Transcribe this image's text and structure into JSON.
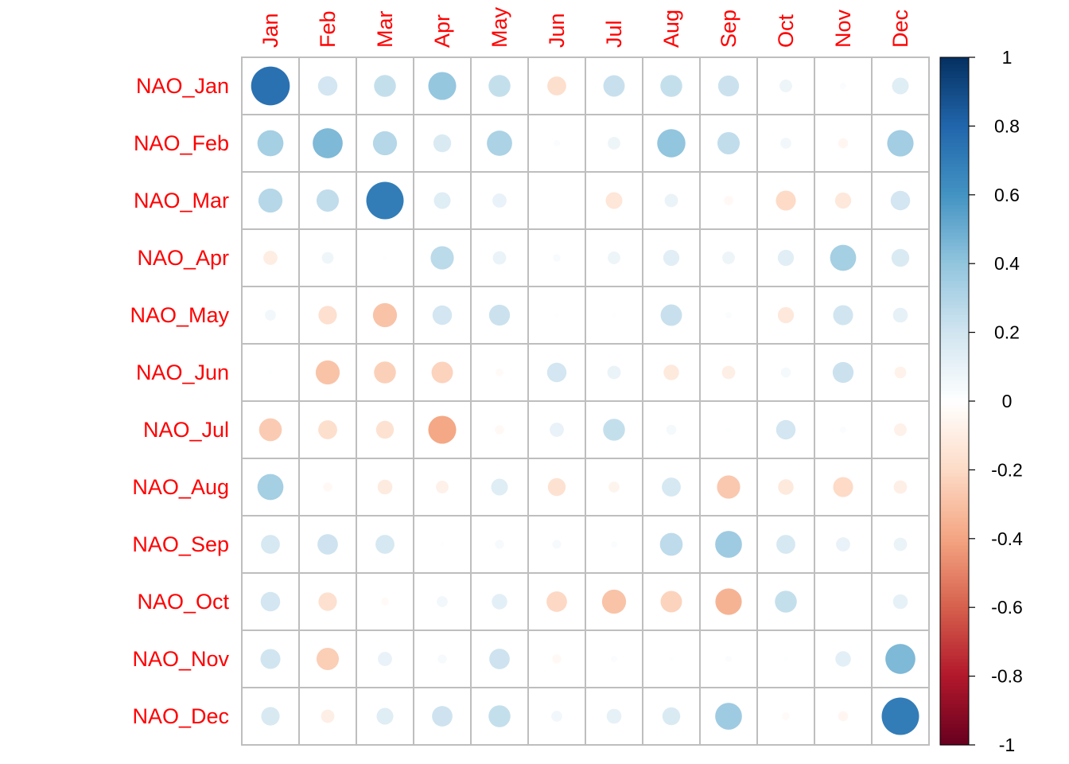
{
  "chart_data": {
    "type": "heatmap",
    "title": "",
    "xlabel": "",
    "ylabel": "",
    "columns": [
      "Jan",
      "Feb",
      "Mar",
      "Apr",
      "May",
      "Jun",
      "Jul",
      "Aug",
      "Sep",
      "Oct",
      "Nov",
      "Dec"
    ],
    "rows": [
      "NAO_Jan",
      "NAO_Feb",
      "NAO_Mar",
      "NAO_Apr",
      "NAO_May",
      "NAO_Jun",
      "NAO_Jul",
      "NAO_Aug",
      "NAO_Sep",
      "NAO_Oct",
      "NAO_Nov",
      "NAO_Dec"
    ],
    "values": [
      [
        0.75,
        0.19,
        0.24,
        0.39,
        0.24,
        -0.18,
        0.23,
        0.24,
        0.22,
        0.08,
        0.02,
        0.14
      ],
      [
        0.34,
        0.45,
        0.29,
        0.16,
        0.32,
        0.02,
        0.08,
        0.4,
        0.25,
        0.06,
        -0.05,
        0.35
      ],
      [
        0.29,
        0.25,
        0.7,
        0.14,
        0.1,
        0.0,
        -0.14,
        0.09,
        -0.04,
        -0.2,
        -0.13,
        0.19
      ],
      [
        -0.1,
        0.07,
        0.01,
        0.27,
        0.09,
        0.03,
        0.08,
        0.13,
        0.08,
        0.13,
        0.34,
        0.16
      ],
      [
        0.06,
        -0.17,
        -0.29,
        0.19,
        0.22,
        0.01,
        0.01,
        0.23,
        0.02,
        -0.13,
        0.2,
        0.11
      ],
      [
        0.01,
        -0.29,
        -0.24,
        -0.23,
        -0.03,
        0.19,
        0.09,
        -0.12,
        -0.09,
        0.05,
        0.22,
        -0.07
      ],
      [
        -0.26,
        -0.18,
        -0.16,
        -0.39,
        -0.04,
        0.1,
        0.24,
        0.05,
        0.01,
        0.19,
        0.02,
        -0.08
      ],
      [
        0.34,
        -0.04,
        -0.11,
        -0.08,
        0.14,
        -0.16,
        -0.06,
        0.18,
        -0.27,
        -0.12,
        -0.2,
        -0.09
      ],
      [
        0.18,
        0.21,
        0.18,
        0.01,
        0.04,
        0.04,
        0.02,
        0.26,
        0.36,
        0.18,
        0.1,
        0.09
      ],
      [
        0.19,
        -0.17,
        -0.03,
        0.06,
        0.12,
        -0.21,
        -0.29,
        -0.23,
        -0.35,
        0.24,
        0.0,
        0.11
      ],
      [
        0.2,
        -0.25,
        0.1,
        0.04,
        0.21,
        -0.04,
        0.02,
        0.01,
        0.02,
        0.01,
        0.12,
        0.45
      ],
      [
        0.17,
        -0.09,
        0.14,
        0.21,
        0.24,
        0.06,
        0.11,
        0.16,
        0.36,
        -0.03,
        -0.05,
        0.7
      ]
    ],
    "color_scale": {
      "min": -1,
      "max": 1,
      "stops": [
        "#67001F",
        "#B2182B",
        "#D6604D",
        "#F4A582",
        "#FDDBC7",
        "#FFFFFF",
        "#D1E5F0",
        "#92C5DE",
        "#4393C3",
        "#2166AC",
        "#053061"
      ],
      "ticks": [
        1,
        0.8,
        0.6,
        0.4,
        0.2,
        0,
        -0.2,
        -0.4,
        -0.6,
        -0.8,
        -1
      ],
      "tick_labels": [
        "1",
        "0.8",
        "0.6",
        "0.4",
        "0.2",
        "0",
        "-0.2",
        "-0.4",
        "-0.6",
        "-0.8",
        "-1"
      ]
    },
    "label_color": "#FF0000",
    "grid_color": "#BEBEBE",
    "grid": true,
    "legend": "right"
  }
}
